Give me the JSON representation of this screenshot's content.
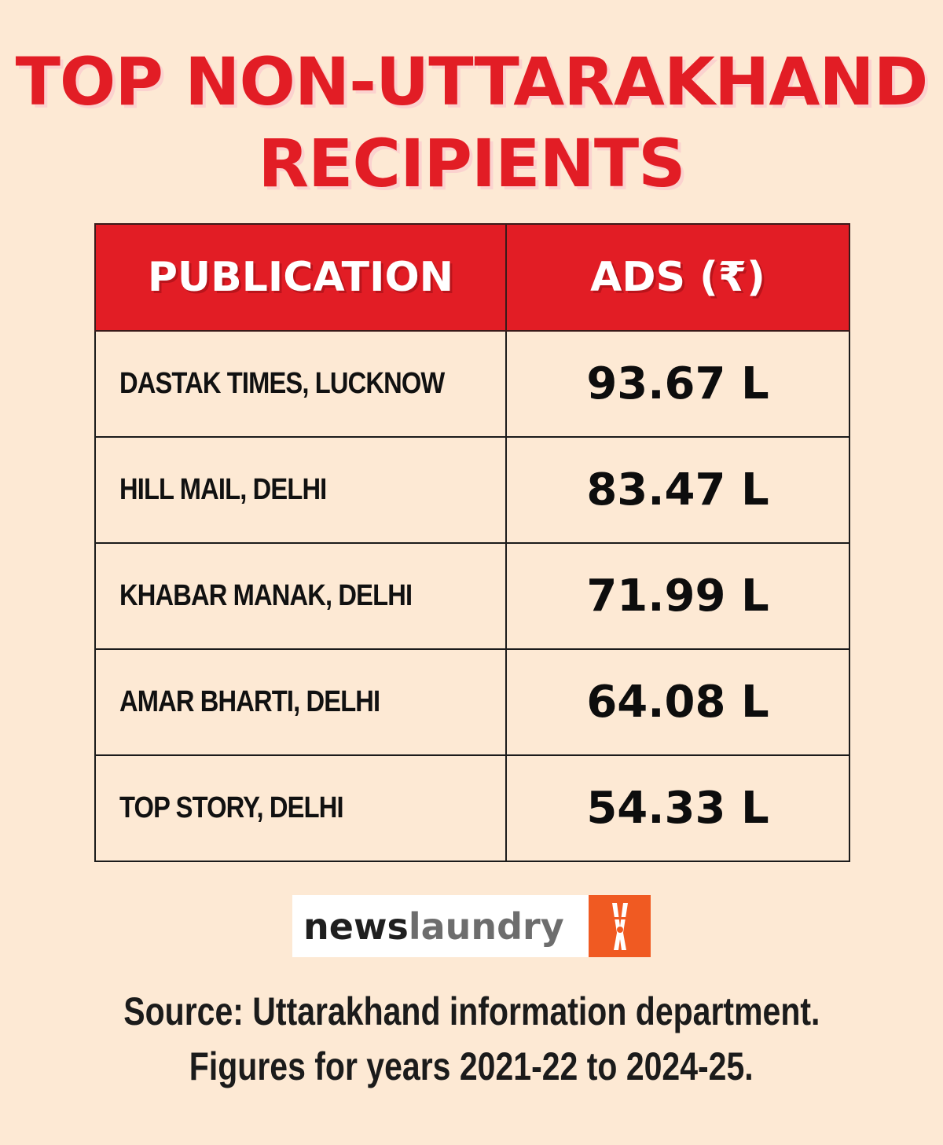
{
  "title": {
    "line1": "TOP NON-UTTARAKHAND",
    "line2": "RECIPIENTS"
  },
  "table": {
    "headers": [
      "PUBLICATION",
      "ADS (₹)"
    ],
    "rows": [
      {
        "publication": "DASTAK TIMES, LUCKNOW",
        "ads": "93.67 L"
      },
      {
        "publication": "HILL MAIL, DELHI",
        "ads": "83.47 L"
      },
      {
        "publication": "KHABAR MANAK, DELHI",
        "ads": "71.99 L"
      },
      {
        "publication": "AMAR BHARTI, DELHI",
        "ads": "64.08 L"
      },
      {
        "publication": "TOP STORY, DELHI",
        "ads": "54.33 L"
      }
    ]
  },
  "logo": {
    "part1": "news",
    "part2": "laundry",
    "icon": "clothespin-icon"
  },
  "source": {
    "line1": "Source: Uttarakhand information department.",
    "line2": "Figures for years 2021-22 to 2024-25."
  },
  "colors": {
    "background": "#fde9d4",
    "accent_red": "#e21d25",
    "logo_orange": "#f05a22"
  }
}
